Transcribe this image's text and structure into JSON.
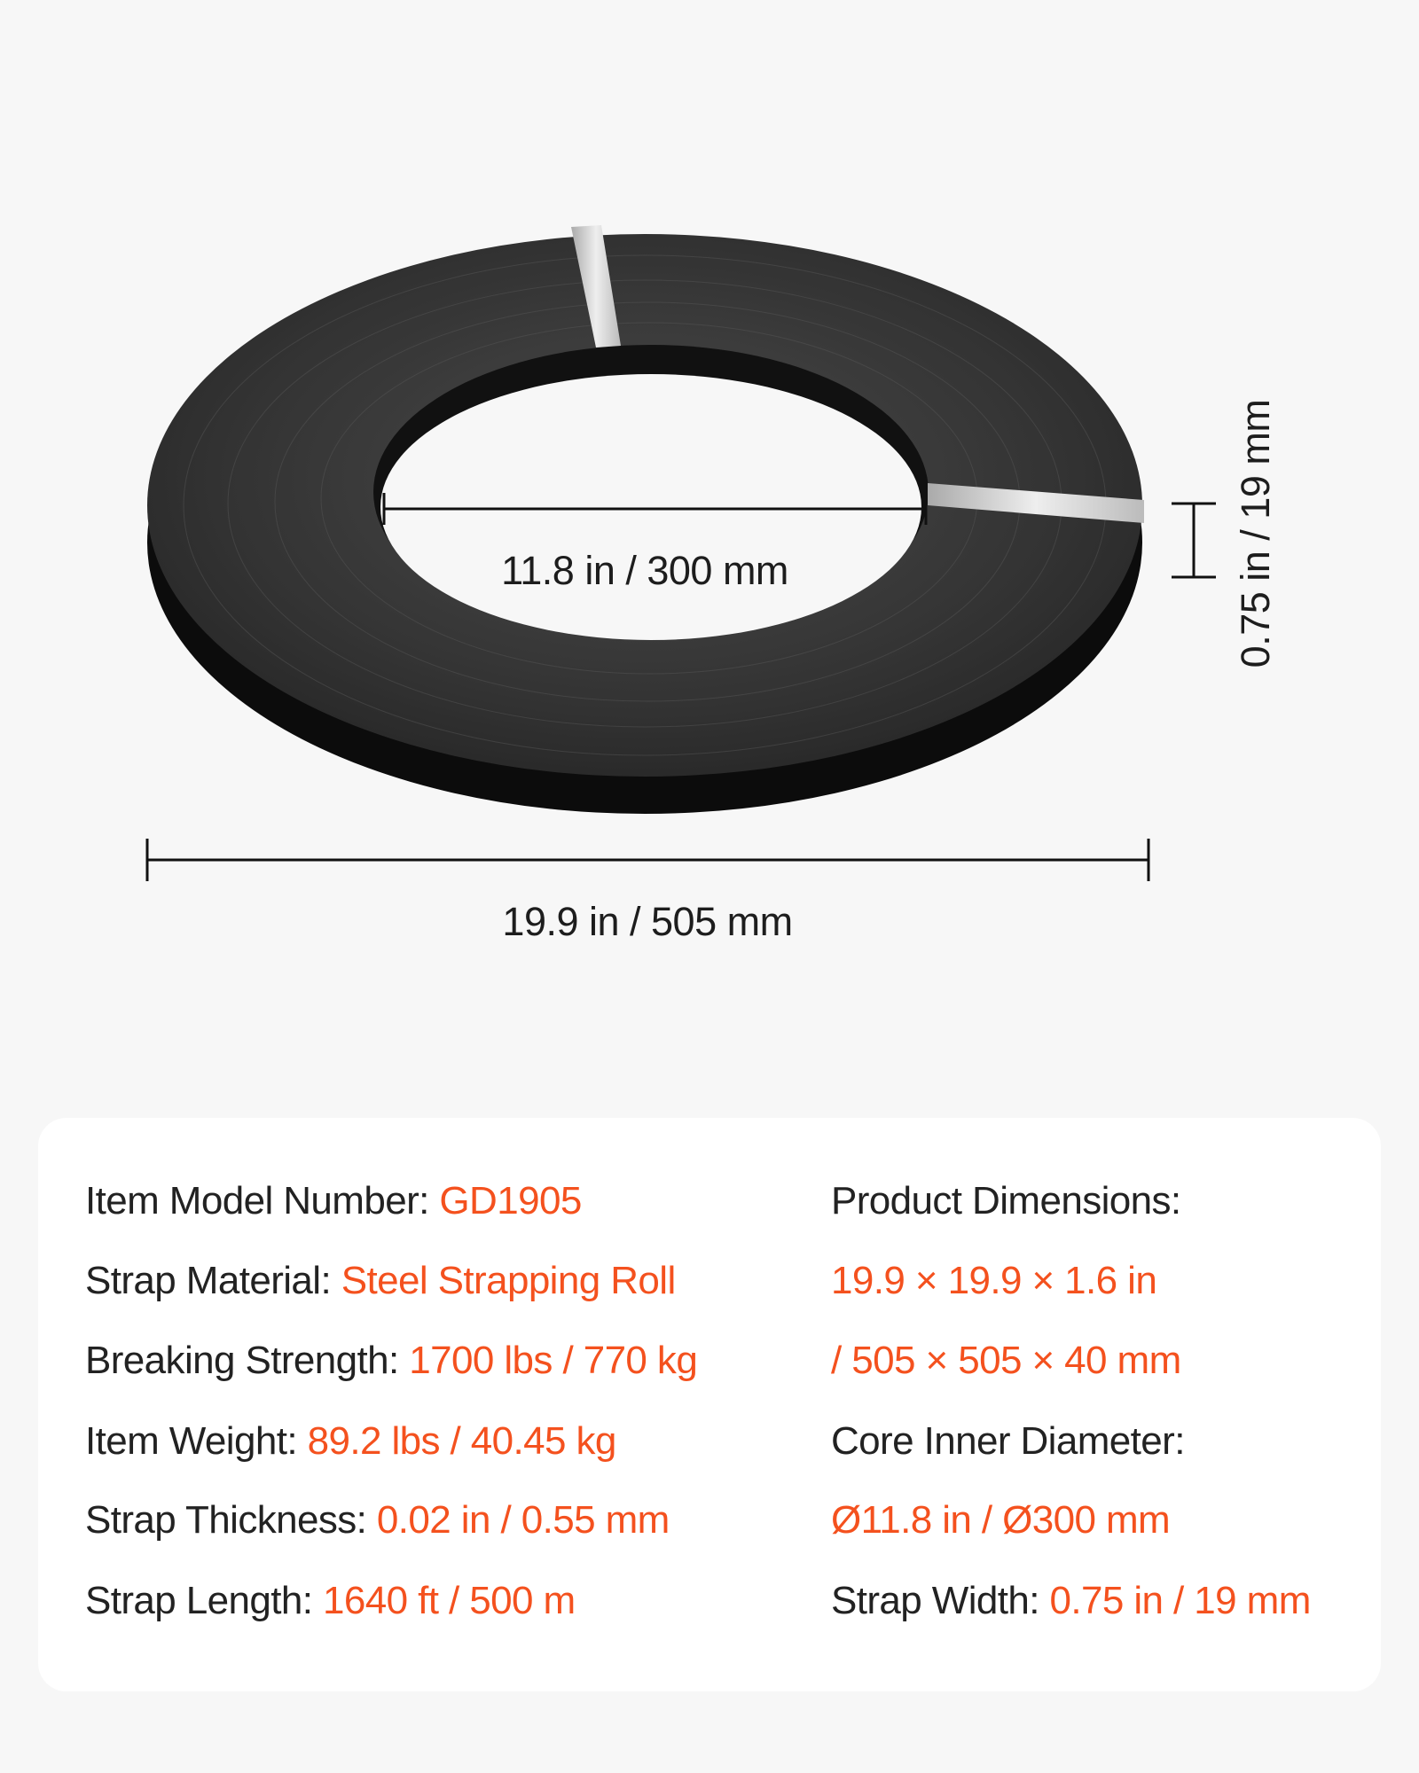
{
  "dimensions": {
    "inner_diameter": "11.8 in / 300 mm",
    "outer_diameter": "19.9 in / 505 mm",
    "width": "0.75 in / 19 mm"
  },
  "specs": {
    "left": [
      {
        "label": "Item Model Number: ",
        "value": "GD1905"
      },
      {
        "label": "Strap Material: ",
        "value": "Steel Strapping Roll"
      },
      {
        "label": "Breaking Strength: ",
        "value": "1700 lbs / 770 kg"
      },
      {
        "label": "Item Weight: ",
        "value": "89.2 lbs / 40.45 kg"
      },
      {
        "label": "Strap Thickness: ",
        "value": "0.02 in / 0.55 mm"
      },
      {
        "label": "Strap Length: ",
        "value": "1640 ft / 500 m"
      }
    ],
    "right": [
      {
        "label": "Product Dimensions:",
        "value": ""
      },
      {
        "label": "",
        "value": "19.9 × 19.9 × 1.6 in"
      },
      {
        "label": "",
        "value": "/ 505 × 505 × 40 mm"
      },
      {
        "label": "Core Inner Diameter:",
        "value": ""
      },
      {
        "label": "",
        "value": "Ø11.8 in / Ø300 mm"
      },
      {
        "label": "Strap Width: ",
        "value": "0.75 in / 19 mm"
      }
    ]
  },
  "colors": {
    "accent": "#f4511e",
    "text": "#222222",
    "background": "#f7f7f7"
  }
}
